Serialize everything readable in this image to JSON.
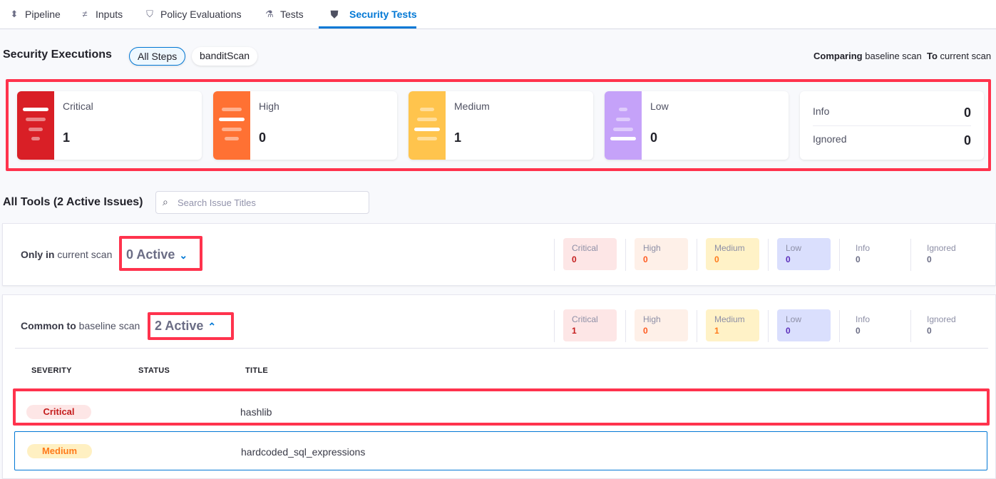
{
  "tabs": [
    {
      "label": "Pipeline",
      "icon": "pipeline-icon"
    },
    {
      "label": "Inputs",
      "icon": "inputs-icon"
    },
    {
      "label": "Policy Evaluations",
      "icon": "shield-check-icon"
    },
    {
      "label": "Tests",
      "icon": "flask-icon"
    },
    {
      "label": "Security Tests",
      "icon": "shield-icon",
      "active": true
    }
  ],
  "header": {
    "title": "Security Executions",
    "filters": [
      "All Steps",
      "banditScan"
    ],
    "selected_filter": "All Steps",
    "compare": {
      "prefix": "Comparing",
      "baseline": "baseline scan",
      "to": "To",
      "current": "current scan"
    }
  },
  "summary": [
    {
      "label": "Critical",
      "value": "1",
      "color": "#d91f26"
    },
    {
      "label": "High",
      "value": "0",
      "color": "#ff7133"
    },
    {
      "label": "Medium",
      "value": "1",
      "color": "#ffc44d"
    },
    {
      "label": "Low",
      "value": "0",
      "color": "#c5a2f9"
    }
  ],
  "summary_extra": [
    {
      "label": "Info",
      "value": "0"
    },
    {
      "label": "Ignored",
      "value": "0"
    }
  ],
  "tools": {
    "title": "All Tools (2 Active Issues)",
    "search_placeholder": "Search Issue Titles"
  },
  "groups": [
    {
      "label_bold": "Only in",
      "label_rest": "current scan",
      "active": "0 Active",
      "expanded": false,
      "counts": [
        {
          "label": "Critical",
          "value": "0"
        },
        {
          "label": "High",
          "value": "0"
        },
        {
          "label": "Medium",
          "value": "0"
        },
        {
          "label": "Low",
          "value": "0"
        },
        {
          "label": "Info",
          "value": "0"
        },
        {
          "label": "Ignored",
          "value": "0"
        }
      ]
    },
    {
      "label_bold": "Common to",
      "label_rest": "baseline scan",
      "active": "2 Active",
      "expanded": true,
      "counts": [
        {
          "label": "Critical",
          "value": "1"
        },
        {
          "label": "High",
          "value": "0"
        },
        {
          "label": "Medium",
          "value": "1"
        },
        {
          "label": "Low",
          "value": "0"
        },
        {
          "label": "Info",
          "value": "0"
        },
        {
          "label": "Ignored",
          "value": "0"
        }
      ]
    }
  ],
  "table": {
    "columns": [
      "SEVERITY",
      "STATUS",
      "TITLE"
    ],
    "rows": [
      {
        "severity": "Critical",
        "status": "",
        "title": "hashlib"
      },
      {
        "severity": "Medium",
        "status": "",
        "title": "hardcoded_sql_expressions"
      }
    ]
  }
}
